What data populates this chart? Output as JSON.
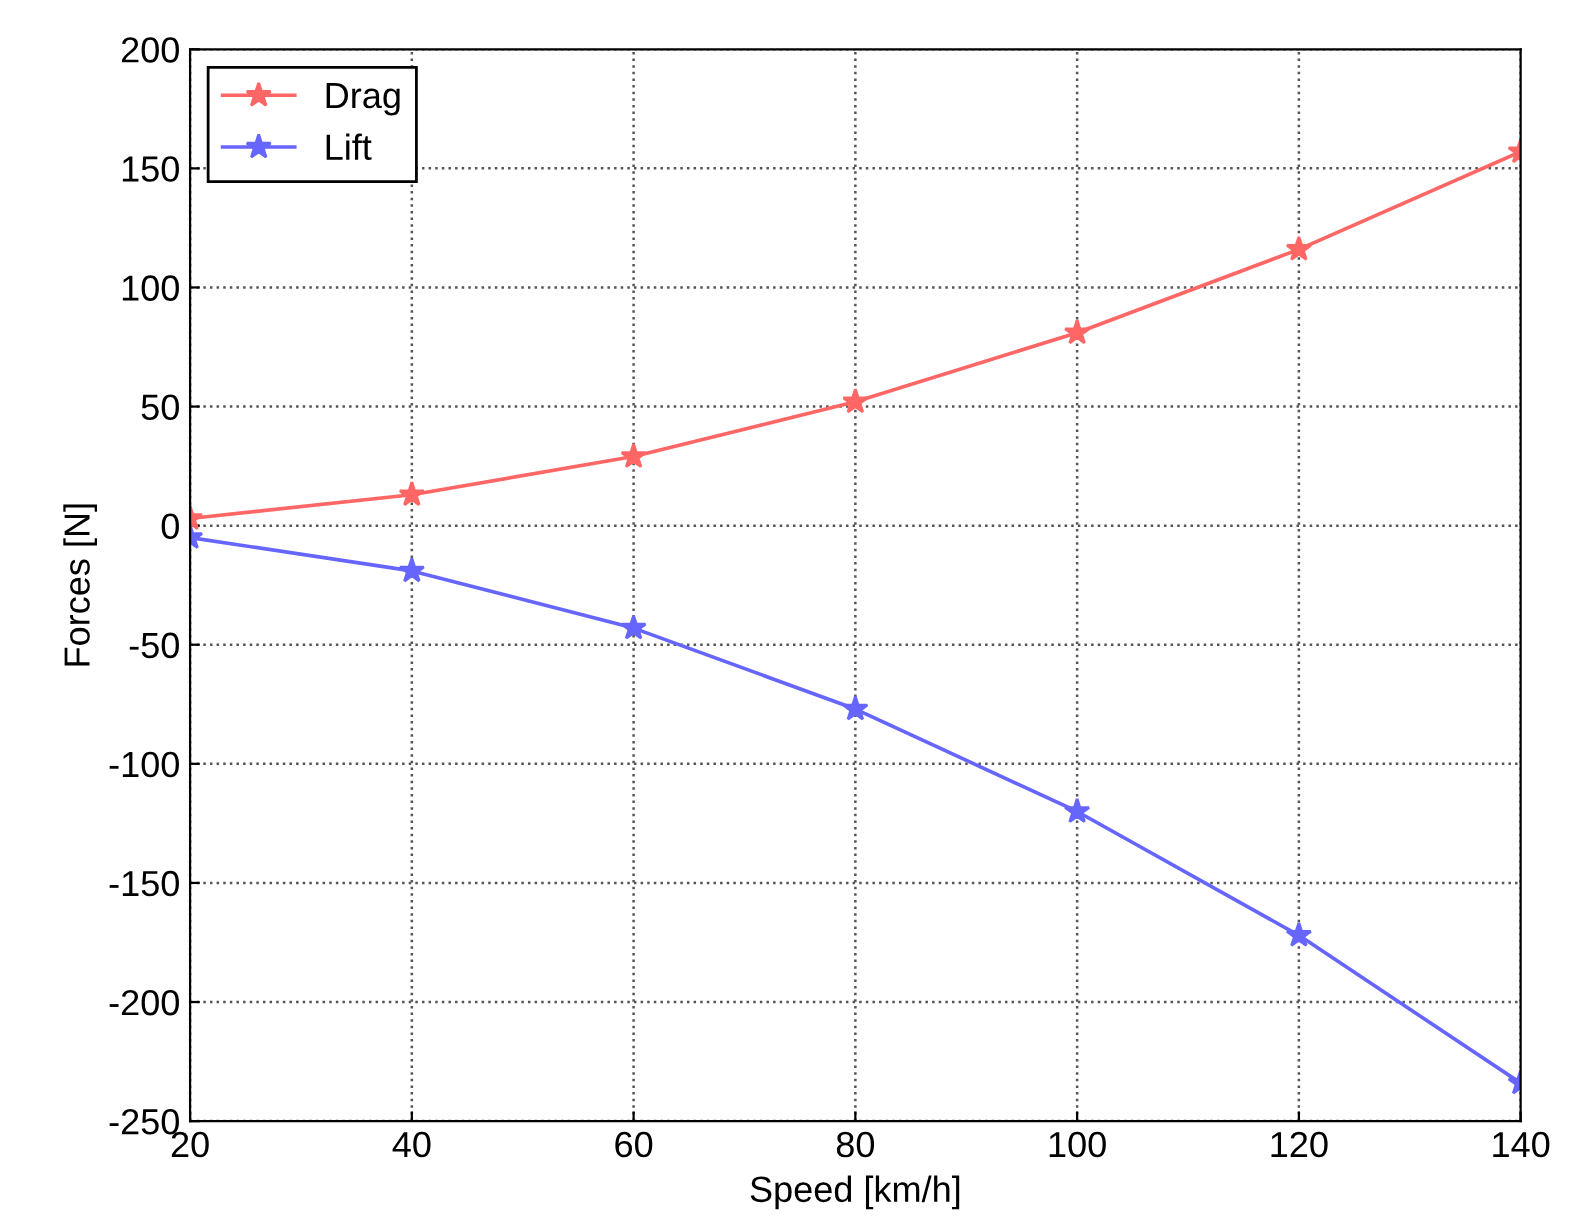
{
  "chart_data": {
    "type": "line",
    "xlabel": "Speed [km/h]",
    "ylabel": "Forces [N]",
    "x": [
      20,
      40,
      60,
      80,
      100,
      120,
      140
    ],
    "series": [
      {
        "name": "Drag",
        "color": "#ff6666",
        "values": [
          3,
          13,
          29,
          52,
          81,
          116,
          157
        ]
      },
      {
        "name": "Lift",
        "color": "#6666ff",
        "values": [
          -5,
          -19,
          -43,
          -77,
          -120,
          -172,
          -234
        ]
      }
    ],
    "xlim": [
      20,
      140
    ],
    "xticks": [
      20,
      40,
      60,
      80,
      100,
      120,
      140
    ],
    "ylim": [
      -250,
      200
    ],
    "yticks": [
      -250,
      -200,
      -150,
      -100,
      -50,
      0,
      50,
      100,
      150,
      200
    ],
    "grid": true,
    "legend": "top left",
    "marker": "star",
    "line_style": "solid"
  }
}
